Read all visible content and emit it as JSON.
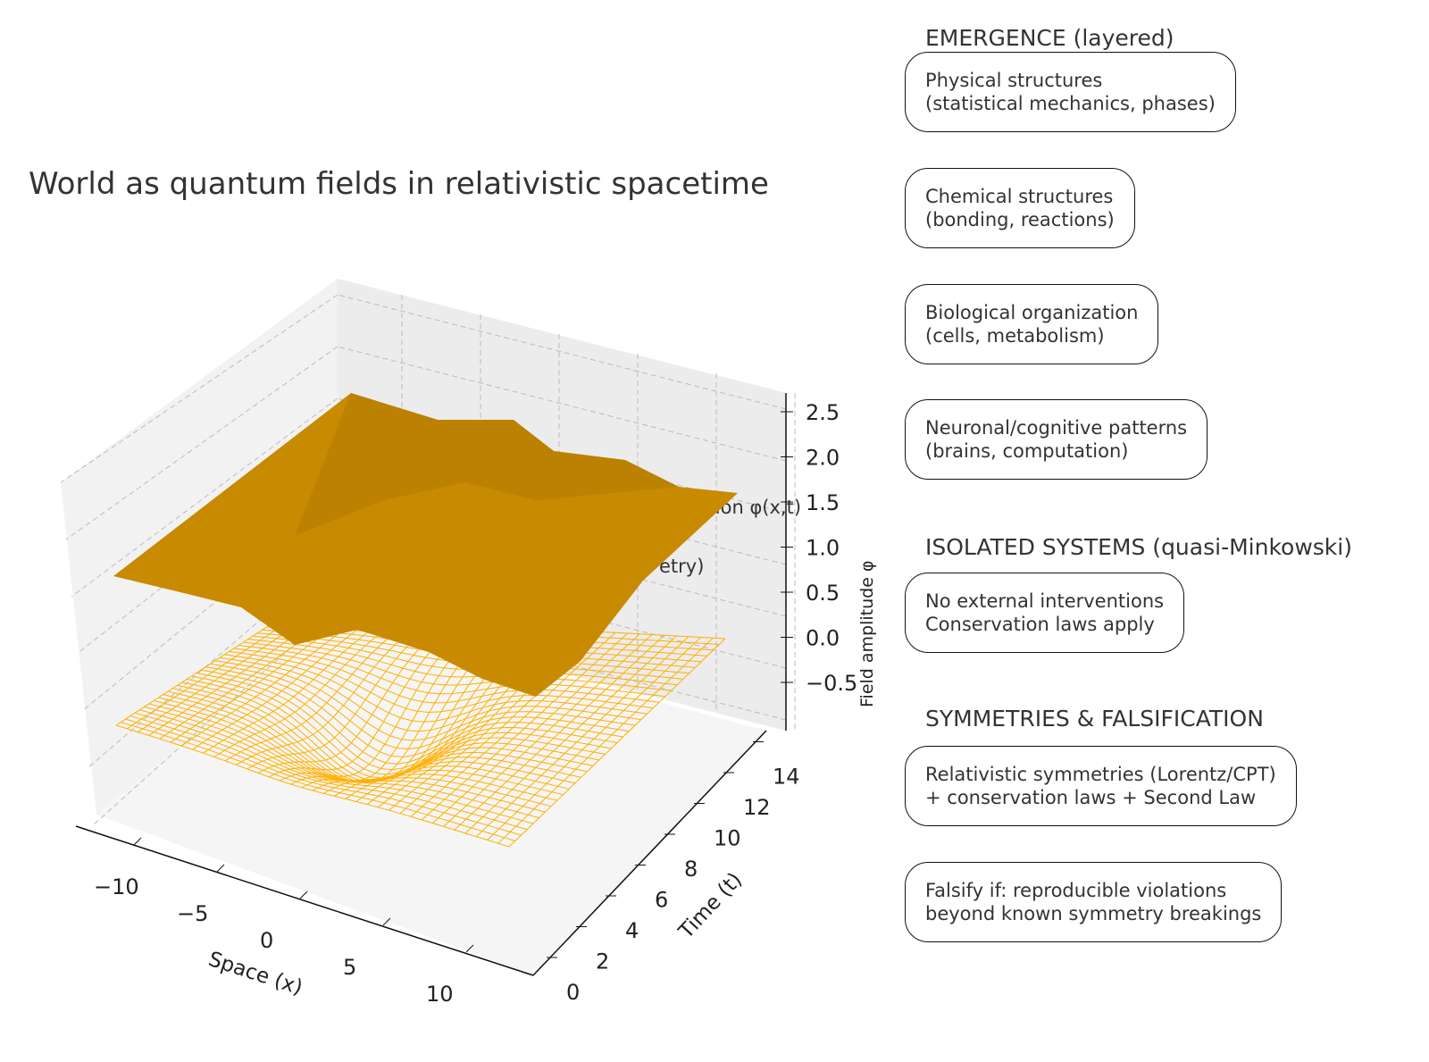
{
  "title": "World as quantum fields in relativistic spacetime",
  "sections": [
    {
      "heading": "EMERGENCE (layered)",
      "boxes": [
        "Physical structures\n(statistical mechanics, phases)",
        "Chemical structures\n(bonding, reactions)",
        "Biological organization\n(cells, metabolism)",
        "Neuronal/cognitive patterns\n(brains, computation)"
      ]
    },
    {
      "heading": "ISOLATED SYSTEMS (quasi-Minkowski)",
      "boxes": [
        "No external interventions\nConservation laws apply"
      ]
    },
    {
      "heading": "SYMMETRIES & FALSIFICATION",
      "boxes": [
        "Relativistic symmetries (Lorentz/CPT)\n+ conservation laws + Second Law",
        "Falsify if: reproducible violations\nbeyond known symmetry breakings"
      ]
    }
  ],
  "chart_data": {
    "type": "surface3d",
    "xlabel": "Space (x)",
    "ylabel": "Time (t)",
    "zlabel": "Field amplitude φ",
    "xticks": [
      "−10",
      "−5",
      "0",
      "5",
      "10"
    ],
    "yticks": [
      "0",
      "2",
      "4",
      "6",
      "8",
      "10",
      "12",
      "14"
    ],
    "zticks": [
      "−0.5",
      "0.0",
      "0.5",
      "1.0",
      "1.5",
      "2.0",
      "2.5"
    ],
    "xlim": [
      -12,
      12
    ],
    "ylim": [
      0,
      15
    ],
    "zlim": [
      -0.9,
      2.6
    ],
    "annotations": [
      "xcitation φ(x,t)",
      "etry)"
    ],
    "surface_color": "#c88a00",
    "wireframe_color": "#ffb000",
    "grid": true
  }
}
